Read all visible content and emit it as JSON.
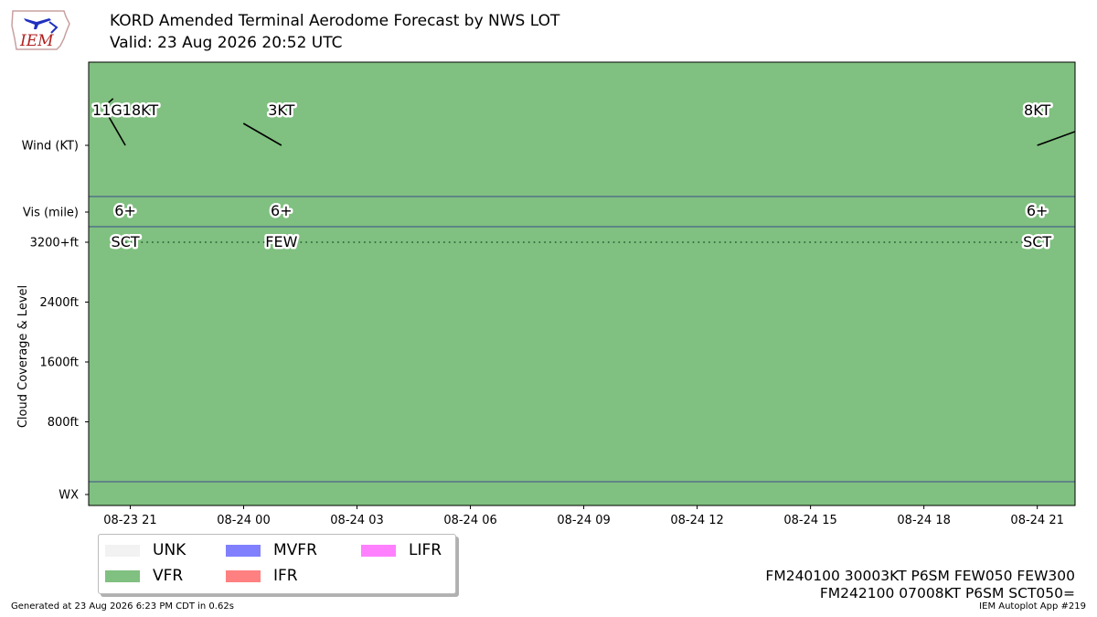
{
  "header": {
    "title_line1": "KORD Amended Terminal Aerodome Forecast by NWS LOT",
    "title_line2": "Valid: 23 Aug 2026 20:52 UTC",
    "logo_text": "IEM"
  },
  "chart_data": {
    "type": "timeline",
    "x_axis": {
      "tick_labels": [
        "08-23 21",
        "08-24 00",
        "08-24 03",
        "08-24 06",
        "08-24 09",
        "08-24 12",
        "08-24 15",
        "08-24 18",
        "08-24 21"
      ],
      "tick_hours": [
        0,
        3,
        6,
        9,
        12,
        15,
        18,
        21,
        24
      ],
      "range_hours": [
        -1.1,
        25
      ],
      "origin": "08-23 21:00 UTC"
    },
    "y_axis": {
      "label": "Cloud Coverage & Level",
      "row_labels": {
        "wind": "Wind (KT)",
        "vis": "Vis (mile)",
        "wx": "WX"
      },
      "level_ticks": [
        "3200+ft",
        "2400ft",
        "1600ft",
        "800ft"
      ],
      "level_values_ft": [
        3200,
        2400,
        1600,
        800
      ]
    },
    "background_category": "VFR",
    "forecasts": [
      {
        "time": "2026-08-23 20:52",
        "hours": -0.13,
        "wind_label": "11G18KT",
        "wind_dir_deg": 330,
        "wind_kt": 11,
        "vis": "6+",
        "cloud": "SCT",
        "cloud_level": "3200+ft"
      },
      {
        "time": "2026-08-24 01:00",
        "hours": 4.0,
        "wind_label": "3KT",
        "wind_dir_deg": 300,
        "wind_kt": 3,
        "vis": "6+",
        "cloud": "FEW",
        "cloud_level": "3200+ft"
      },
      {
        "time": "2026-08-24 21:00",
        "hours": 24.0,
        "wind_label": "8KT",
        "wind_dir_deg": 70,
        "wind_kt": 8,
        "vis": "6+",
        "cloud": "SCT",
        "cloud_level": "3200+ft"
      }
    ],
    "legend": [
      {
        "label": "UNK",
        "color": "#f2f2f2"
      },
      {
        "label": "VFR",
        "color": "#80c080"
      },
      {
        "label": "MVFR",
        "color": "#8080ff"
      },
      {
        "label": "IFR",
        "color": "#ff8080"
      },
      {
        "label": "LIFR",
        "color": "#ff80ff"
      }
    ],
    "legend_placement": "below-left",
    "grid": false
  },
  "taf_text": {
    "line1": "FM240100 30003KT P6SM FEW050 FEW300",
    "line2": "FM242100 07008KT P6SM SCT050="
  },
  "footer": {
    "generated": "Generated at 23 Aug 2026 6:23 PM CDT in 0.62s",
    "app": "IEM Autoplot App #219"
  },
  "colors": {
    "vfr": "#80c080",
    "row_line": "#3c4c8c",
    "cloud_dots": "#1e5a2e"
  }
}
